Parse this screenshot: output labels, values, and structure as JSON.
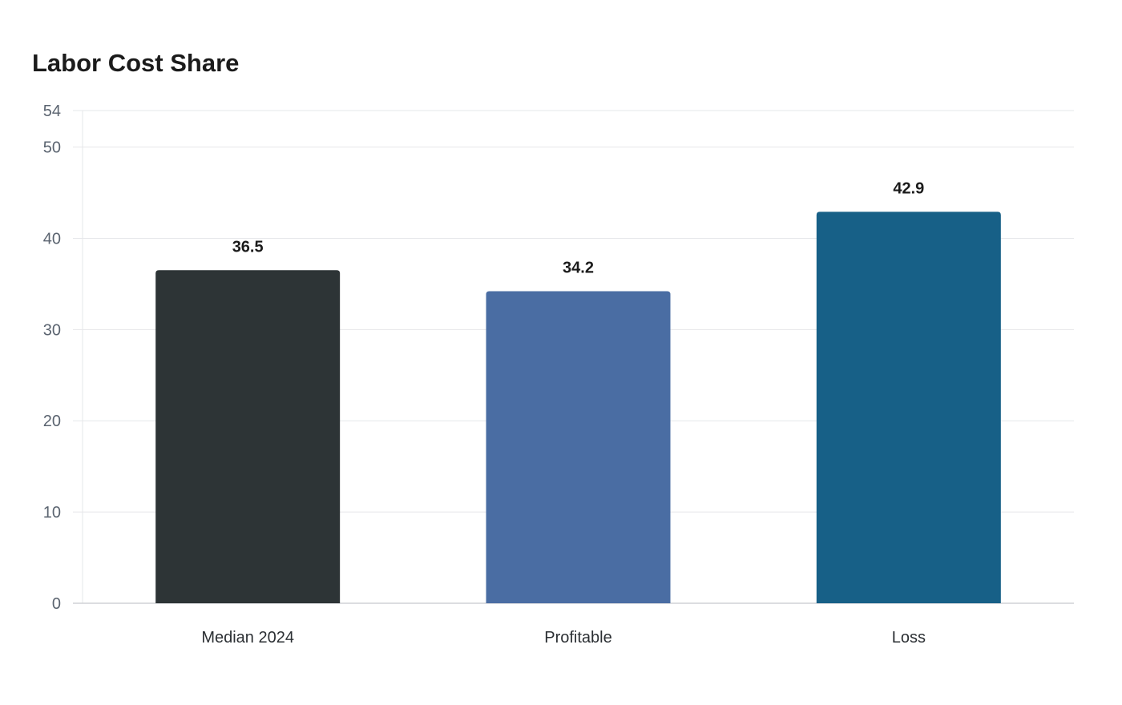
{
  "chart_data": {
    "type": "bar",
    "title": "Labor Cost Share",
    "xlabel": "",
    "ylabel": "",
    "categories": [
      "Median 2024",
      "Profitable",
      "Loss"
    ],
    "values": [
      36.5,
      34.2,
      42.9
    ],
    "value_labels": [
      "36.5",
      "34.2",
      "42.9"
    ],
    "colors": [
      "#2d3436",
      "#4a6da3",
      "#176087"
    ],
    "ylim": [
      0,
      54
    ],
    "yticks": [
      0,
      10,
      20,
      30,
      40,
      50,
      54
    ],
    "grid": true,
    "legend": "none"
  }
}
